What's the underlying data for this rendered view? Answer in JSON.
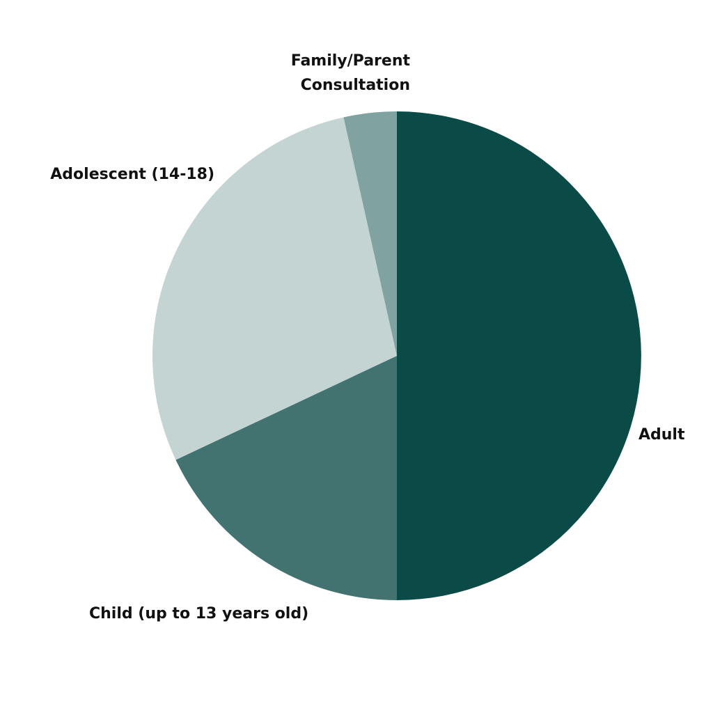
{
  "chart_data": {
    "type": "pie",
    "title": "",
    "categories": [
      "Adult",
      "Child (up to 13 years old)",
      "Adolescent (14-18)",
      "Family/Parent Consultation"
    ],
    "values": [
      50,
      18,
      28.5,
      3.5
    ],
    "colors": [
      "#0a4a47",
      "#427370",
      "#c3d4d2",
      "#80a3a1"
    ],
    "start_angle_deg": 0,
    "direction": "clockwise",
    "legend": "none",
    "labels": [
      {
        "lines": [
          "Adult"
        ]
      },
      {
        "lines": [
          "Child (up to 13 years old)"
        ]
      },
      {
        "lines": [
          "Adolescent (14-18)"
        ]
      },
      {
        "lines": [
          "Family/Parent",
          "Consultation"
        ]
      }
    ]
  }
}
